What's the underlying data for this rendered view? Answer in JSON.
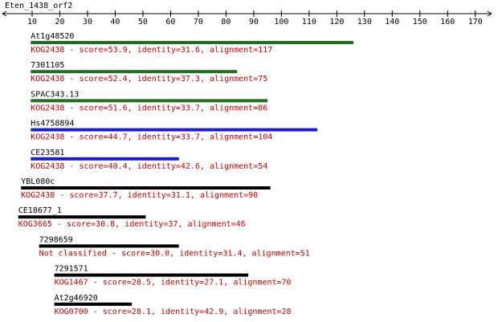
{
  "chart_data": {
    "type": "alignment",
    "title": "Eten_1438_orf2",
    "xlim": [
      0,
      175
    ],
    "xticks": [
      10,
      20,
      30,
      40,
      50,
      60,
      70,
      80,
      90,
      100,
      110,
      120,
      130,
      140,
      150,
      160,
      170
    ],
    "hits": [
      {
        "name": "At1g48520",
        "label": "KOG2438 - score=53.9, identity=31.6, alignment=117",
        "color": "#1e6e1e",
        "start": 9.5,
        "end": 126
      },
      {
        "name": "7301105",
        "label": "KOG2438 - score=52.4, identity=37.3, alignment=75",
        "color": "#1e6e1e",
        "start": 9.5,
        "end": 84
      },
      {
        "name": "SPAC343.13",
        "label": "KOG2438 - score=51.6, identity=33.7, alignment=86",
        "color": "#1e6e1e",
        "start": 9.5,
        "end": 95
      },
      {
        "name": "Hs4758894",
        "label": "KOG2438 - score=44.7, identity=33.7, alignment=104",
        "color": "#1c1ccc",
        "start": 9.5,
        "end": 113
      },
      {
        "name": "CE23581",
        "label": "KOG2438 - score=40.4, identity=42.6, alignment=54",
        "color": "#1c1ccc",
        "start": 9.5,
        "end": 63
      },
      {
        "name": "YBL080c",
        "label": "KOG2438 - score=37.7, identity=31.1, alignment=90",
        "color": "#000000",
        "start": 6,
        "end": 96
      },
      {
        "name": "CE18677_1",
        "label": "KOG3665 - score=30.8, identity=37, alignment=46",
        "color": "#000000",
        "start": 5,
        "end": 51
      },
      {
        "name": "7298659",
        "label": "Not classified - score=30.0, identity=31.4, alignment=51",
        "color": "#000000",
        "start": 12.5,
        "end": 63
      },
      {
        "name": "7291571",
        "label": "KOG1467 - score=28.5, identity=27.1, alignment=70",
        "color": "#000000",
        "start": 18,
        "end": 88
      },
      {
        "name": "At2g46920",
        "label": "KOG0700 - score=28.1, identity=42.9, alignment=28",
        "color": "#000000",
        "start": 18,
        "end": 46
      }
    ]
  }
}
